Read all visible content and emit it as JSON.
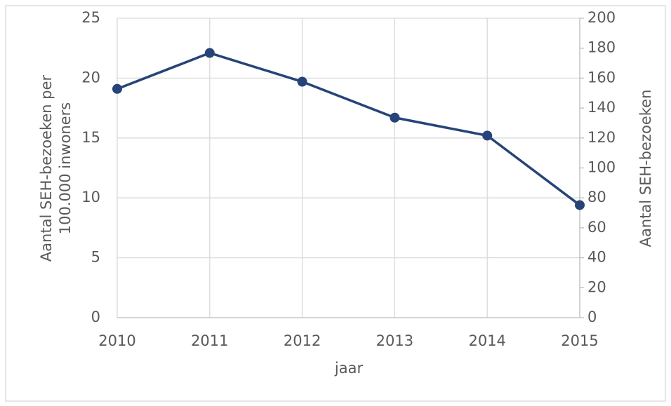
{
  "chart_data": {
    "type": "line",
    "x": [
      2010,
      2011,
      2012,
      2013,
      2014,
      2015
    ],
    "xlim": [
      2010,
      2015
    ],
    "xticks": [
      2010,
      2011,
      2012,
      2013,
      2014,
      2015
    ],
    "xlabel": "jaar",
    "ylabel": [
      "Aantal SEH-bezoeken per",
      "100.000 inwoners"
    ],
    "y2label": "Aantal SEH-bezoeken",
    "ylim": [
      0,
      25
    ],
    "yticks": [
      0,
      5,
      10,
      15,
      20,
      25
    ],
    "y2lim": [
      0,
      200
    ],
    "y2ticks": [
      0,
      20,
      40,
      60,
      80,
      100,
      120,
      140,
      160,
      180,
      200
    ],
    "grid": true,
    "series": [
      {
        "color": "#264478",
        "values": [
          19.1,
          22.1,
          19.7,
          16.7,
          15.2,
          9.4
        ]
      }
    ]
  }
}
